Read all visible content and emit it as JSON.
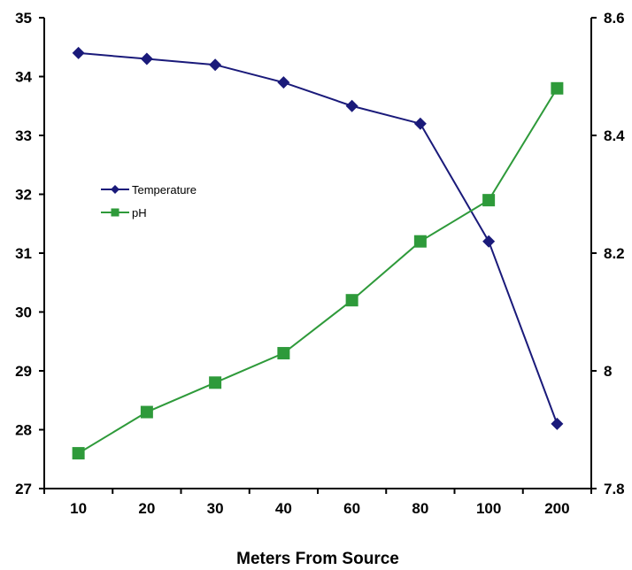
{
  "chart_data": {
    "type": "line",
    "title": "",
    "xlabel": "Meters From Source",
    "categories": [
      "10",
      "20",
      "30",
      "40",
      "60",
      "80",
      "100",
      "200"
    ],
    "y_left": {
      "label": "",
      "ylim": [
        27,
        35
      ],
      "ticks": [
        "27",
        "28",
        "29",
        "30",
        "31",
        "32",
        "33",
        "34",
        "35"
      ]
    },
    "y_right": {
      "label": "",
      "ylim": [
        7.8,
        8.6
      ],
      "ticks": [
        "7.8",
        "8",
        "8.2",
        "8.4",
        "8.6"
      ]
    },
    "grid": false,
    "legend_position": "center-left",
    "series": [
      {
        "name": "Temperature",
        "axis": "left",
        "marker": "diamond",
        "color": "#1a1a7a",
        "values": [
          34.4,
          34.3,
          34.2,
          33.9,
          33.5,
          33.2,
          31.2,
          28.1
        ]
      },
      {
        "name": "pH",
        "axis": "right",
        "marker": "square",
        "color": "#2e9a3a",
        "values": [
          7.86,
          7.93,
          7.98,
          8.03,
          8.12,
          8.22,
          8.29,
          8.48
        ]
      }
    ]
  }
}
